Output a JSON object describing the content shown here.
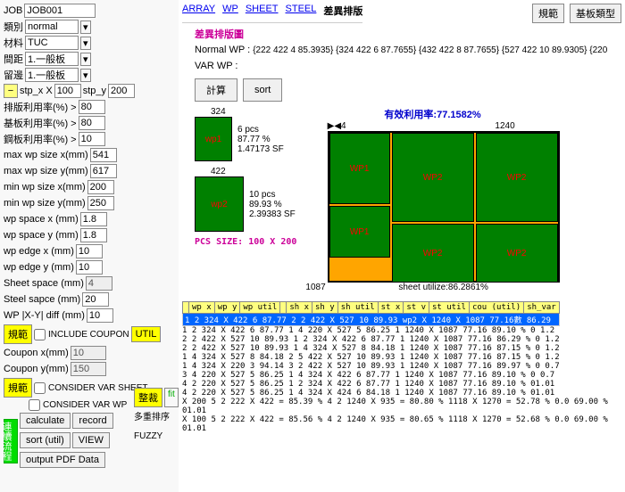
{
  "left": {
    "job_label": "JOB",
    "job_value": "JOB001",
    "type_label": "類別",
    "type_value": "normal",
    "material_label": "材料",
    "material_value": "TUC",
    "spacing_label": "間距",
    "spacing_value": "1.一般板",
    "margin_label": "留邊",
    "margin_value": "1.一般板",
    "stp_x_label": "stp_x X",
    "stp_x_value": "100",
    "stp_y_label": "stp_y",
    "stp_y_value": "200",
    "row1_label": "排版利用率(%) >",
    "row1_value": "80",
    "row2_label": "基板利用率(%) >",
    "row2_value": "80",
    "row3_label": "鋼板利用率(%) >",
    "row3_value": "10",
    "row4_label": "max wp size x(mm)",
    "row4_value": "541",
    "row5_label": "max wp size y(mm)",
    "row5_value": "617",
    "row6_label": "min  wp size x(mm)",
    "row6_value": "200",
    "row7_label": "min  wp size y(mm)",
    "row7_value": "250",
    "row8_label": "wp space x   (mm)",
    "row8_value": "1.8",
    "row9_label": "wp space y   (mm)",
    "row9_value": "1.8",
    "row10_label": "wp edge x   (mm)",
    "row10_value": "10",
    "row11_label": "wp edge y   (mm)",
    "row11_value": "10",
    "row12_label": "Sheet space (mm)",
    "row12_value": "4",
    "row13_label": "Steel sapce  (mm)",
    "row13_value": "20",
    "row14_label": "WP |X-Y| diff (mm)",
    "row14_value": "10",
    "include_coupon_label": "INCLUDE COUPON",
    "util_label": "UTIL",
    "coupon_x_label": "Coupon x(mm)",
    "coupon_x_value": "10",
    "coupon_y_label": "Coupon y(mm)",
    "coupon_y_value": "150",
    "consider_var_sheet_label": "CONSIDER VAR SHEET",
    "consider_var_wp_label": "CONSIDER VAR WP",
    "calculate_btn": "calculate",
    "record_btn": "record",
    "sort_util_btn": "sort (util)",
    "view_btn": "VIEW",
    "output_pdf_btn": "output PDF Data",
    "spec_btn": "規範",
    "align_btn": "整裁",
    "fit_btn": "fit",
    "multi_sort_label": "多重排序",
    "fuzzy_label": "FUZZY",
    "proc_btn": "連續流程"
  },
  "tabs": {
    "array": "ARRAY",
    "wp": "WP",
    "sheet": "SHEET",
    "steel": "STEEL",
    "diff": "差異排版",
    "spec": "規範",
    "board_type": "基板類型"
  },
  "main": {
    "title": "差異排版圖",
    "normal_wp_label": "Normal WP :",
    "normal_wp_value": "{222 422 4 85.3935} {324 422 6 87.7655} {432 422 8 87.7655} {527 422 10 89.9305} {220",
    "var_wp_label": "VAR WP :",
    "calc_btn": "計算",
    "sort_btn": "sort",
    "util_label": "有效利用率:",
    "util_value": "77.1582%",
    "dim_324": "324",
    "dim_422": "422",
    "dim_1240": "1240",
    "dim_1087": "1087",
    "dim_4": "4",
    "wp1_info_pcs": "6 pcs",
    "wp1_info_pct": "87.77 %",
    "wp1_info_sf": "1.47173 SF",
    "wp2_info_pcs": "10 pcs",
    "wp2_info_pct": "89.93 %",
    "wp2_info_sf": "2.39383 SF",
    "pcs_size_label": "PCS SIZE: 100 X 200",
    "sheet_util_label": "sheet utilize:86.2861%",
    "wp1_label": "WP1",
    "wp2_label": "WP2",
    "wp1_small": "wp1",
    "wp2_small": "wp2"
  },
  "table": {
    "headers": [
      "",
      "wp x",
      "wp y",
      "wp util",
      "",
      "sh x",
      "sh y",
      "sh util",
      "st x",
      "st v",
      "st util",
      "cou (util)",
      "sh_var"
    ],
    "hl_row": "1  2 324 X 422   6 87.77 2 2 422 X 527  10 89.93 wp2 X 1240 X 1087  77.16數 86.29",
    "rows": [
      "1 2 324 X 422   6 87.77 1 4 220 X 527   5 86.25 1 1240 X 1087  77.16 89.10",
      "2 2 422 X 527  10 89.93 1 2 324 X 422   6 87.77 1 1240 X 1087  77.16 86.29",
      "2 2 422 X 527  10 89.93 1 4 324 X 527   8 84.18 1 1240 X 1087  77.16 87.15",
      "1 4 324 X 527   8 84.18 2 5 422 X 527  10 89.93 1 1240 X 1087  77.16 87.15",
      "1 4 324 X 220   3 94.14 3 2 422 X 527  10 89.93 1 1240 X 1087  77.16 89.97",
      "3 4 220 X 527   5 86.25 1 4 324 X 422   6 87.77 1 1240 X 1087  77.16 89.10",
      "4 2 220 X 527   5 86.25 1 2 324 X 422   6 87.77 1 1240 X 1087  77.16 89.10",
      "4 2 220 X 527   5 86.25 1 4 324 X 424   6 84.18 1 1240 X 1087  77.16 89.10"
    ],
    "pct_col": [
      "% 0 1.2",
      "% 0 1.2",
      "% 0 1.2",
      "% 0 1.2",
      "% 0 0.7",
      "% 0 0.7",
      "% 01.01",
      "% 01.01"
    ],
    "footer1": "X  200  5  2  222 X  422 = 85.39 % 4 2 1240 X  935 = 80.80 % 1118 X 1270 = 52.78 % 0.0 69.00  % 01.01",
    "footer2": "X  100  5  2  222 X  422 = 85.56 % 4 2 1240 X  935 = 80.65 % 1118 X 1270 = 52.68 % 0.0 69.00  % 01.01"
  }
}
